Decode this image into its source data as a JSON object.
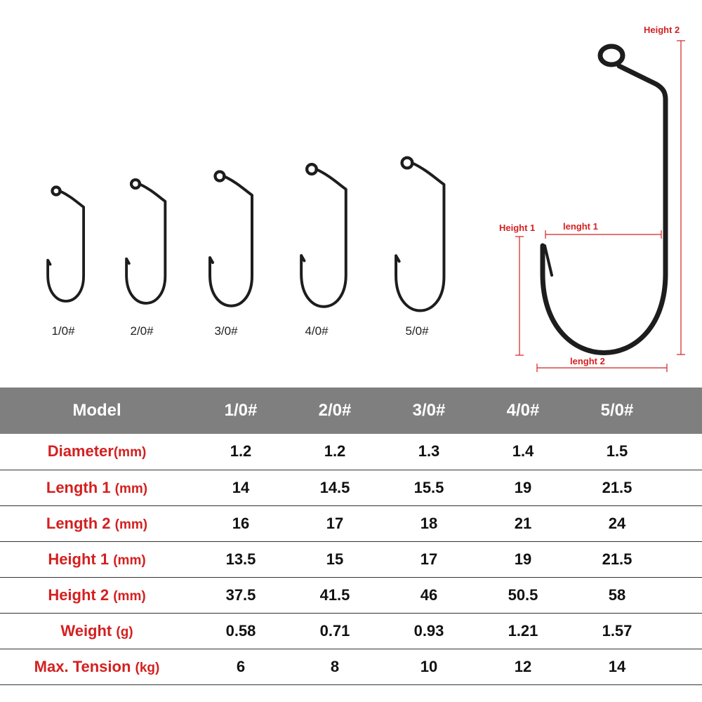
{
  "hooks": {
    "size_labels": [
      "1/0#",
      "2/0#",
      "3/0#",
      "4/0#",
      "5/0#"
    ]
  },
  "diagram": {
    "height2_label": "Height 2",
    "height1_label": "Height 1",
    "length1_label": "lenght 1",
    "length2_label": "lenght 2",
    "dimension_color": "#d42020"
  },
  "table": {
    "header_bg": "#7f7f7f",
    "columns": [
      "Model",
      "1/0#",
      "2/0#",
      "3/0#",
      "4/0#",
      "5/0#"
    ],
    "rows": [
      {
        "label": "Diameter",
        "unit": "(mm)",
        "values": [
          "1.2",
          "1.2",
          "1.3",
          "1.4",
          "1.5"
        ]
      },
      {
        "label": "Length 1 ",
        "unit": "(mm)",
        "values": [
          "14",
          "14.5",
          "15.5",
          "19",
          "21.5"
        ]
      },
      {
        "label": "Length 2 ",
        "unit": "(mm)",
        "values": [
          "16",
          "17",
          "18",
          "21",
          "24"
        ]
      },
      {
        "label": "Height 1 ",
        "unit": "(mm)",
        "values": [
          "13.5",
          "15",
          "17",
          "19",
          "21.5"
        ]
      },
      {
        "label": "Height 2 ",
        "unit": "(mm)",
        "values": [
          "37.5",
          "41.5",
          "46",
          "50.5",
          "58"
        ]
      },
      {
        "label": "Weight ",
        "unit": "(g)",
        "values": [
          "0.58",
          "0.71",
          "0.93",
          "1.21",
          "1.57"
        ]
      },
      {
        "label": "Max. Tension ",
        "unit": "(kg)",
        "values": [
          "6",
          "8",
          "10",
          "12",
          "14"
        ]
      }
    ]
  }
}
